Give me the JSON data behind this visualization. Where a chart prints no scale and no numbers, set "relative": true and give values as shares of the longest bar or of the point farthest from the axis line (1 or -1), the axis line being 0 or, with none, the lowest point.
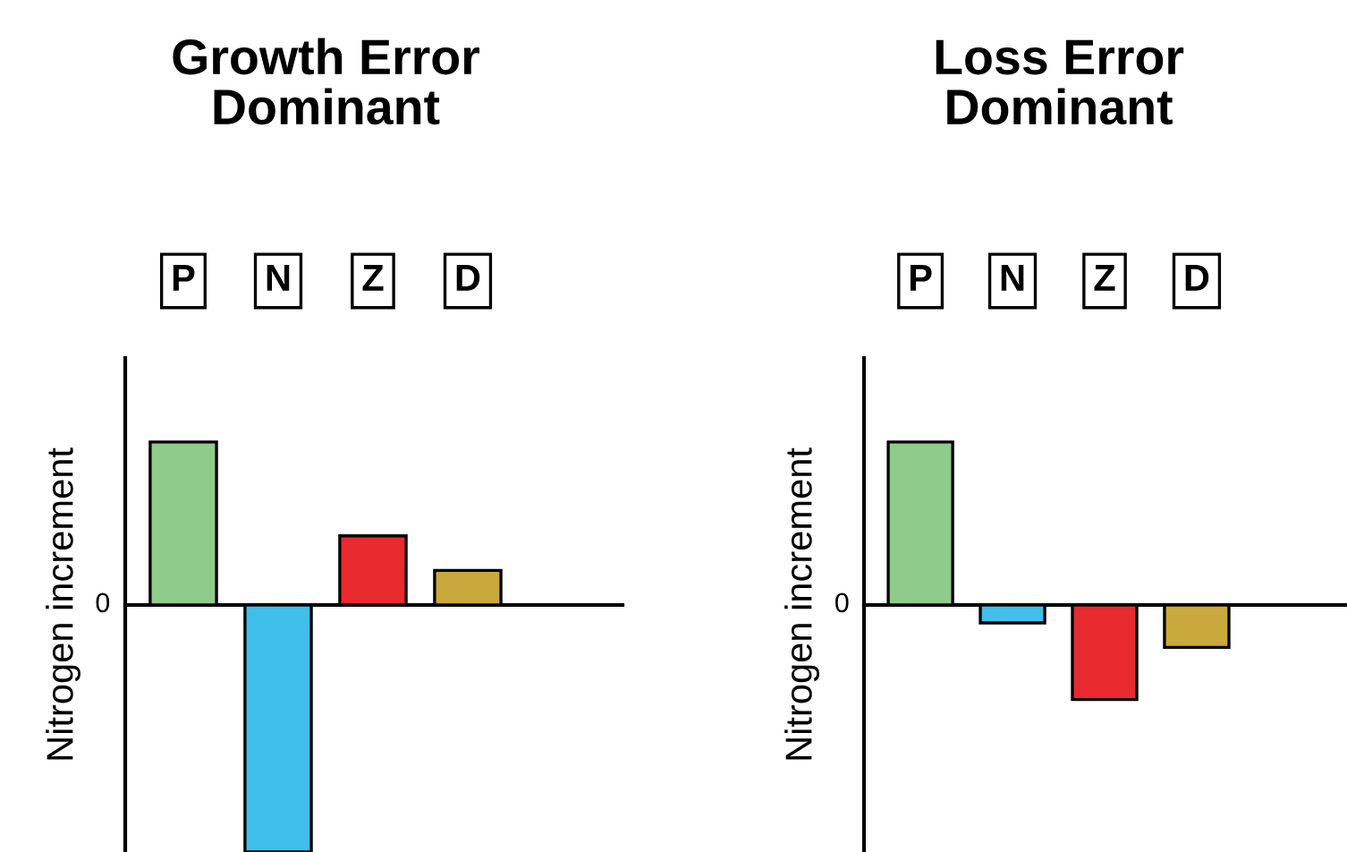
{
  "chart_data": [
    {
      "type": "bar",
      "title": "Growth Error\nDominant",
      "ylabel": "Nitrogen increment",
      "categories": [
        "P",
        "N",
        "Z",
        "D"
      ],
      "values": [
        0.66,
        -1,
        0.28,
        0.14
      ],
      "colors": [
        "#8fcb8a",
        "#3fbfe9",
        "#e82a2f",
        "#c9a93b"
      ],
      "relative": true,
      "annotations": [
        "0"
      ]
    },
    {
      "type": "bar",
      "title": "Loss Error\nDominant",
      "ylabel": "Nitrogen increment",
      "categories": [
        "P",
        "N",
        "Z",
        "D"
      ],
      "values": [
        1,
        -0.11,
        -0.58,
        -0.26
      ],
      "colors": [
        "#8fcb8a",
        "#3fbfe9",
        "#e82a2f",
        "#c9a93b"
      ],
      "relative": true,
      "annotations": [
        "0"
      ]
    }
  ]
}
